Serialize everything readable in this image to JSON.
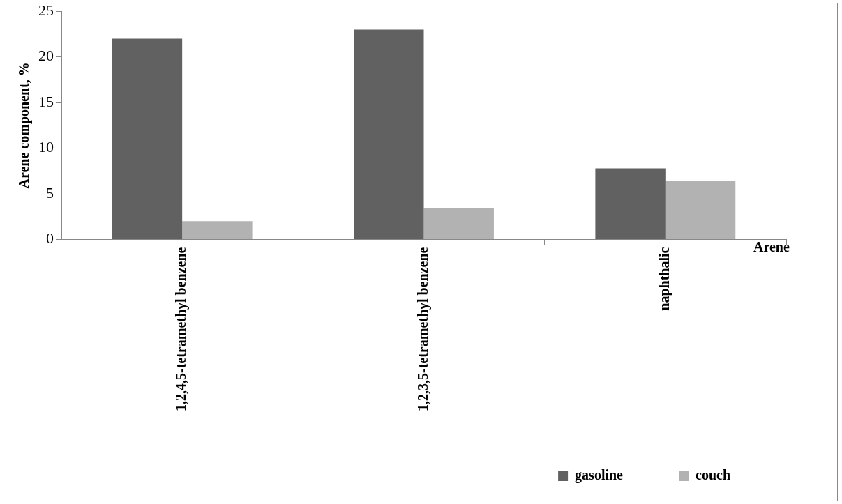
{
  "chart_data": {
    "type": "bar",
    "xlabel": "Arene",
    "ylabel": "Arene component, %",
    "categories": [
      "1,2,4,5-tetramethyl benzene",
      "1,2,3,5-tetramethyl benzene",
      "naphthalic"
    ],
    "series": [
      {
        "name": "gasoline",
        "color": "#616161",
        "values": [
          22,
          23,
          7.8
        ]
      },
      {
        "name": "couch",
        "color": "#b2b2b2",
        "values": [
          2,
          3.4,
          6.4
        ]
      }
    ],
    "ylim": [
      0,
      25
    ],
    "yticks": [
      0,
      5,
      10,
      15,
      20,
      25
    ],
    "grid": false,
    "legend": "bottom right"
  }
}
